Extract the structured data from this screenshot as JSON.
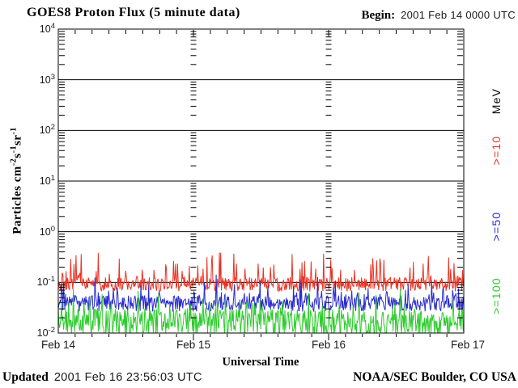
{
  "header": {
    "title": "GOES8 Proton Flux (5 minute data)",
    "begin_label": "Begin:",
    "begin_value": "2001 Feb 14 0000 UTC"
  },
  "footer": {
    "updated_label": "Updated",
    "updated_value": "2001 Feb 16 23:56:03 UTC",
    "credit": "NOAA/SEC Boulder, CO USA"
  },
  "chart_data": {
    "type": "line",
    "title": "GOES8 Proton Flux (5 minute data)",
    "xlabel": "Universal Time",
    "ylabel": "Particles cm-2s-1sr-1",
    "ylabel_parts": [
      {
        "t": "Particles cm"
      },
      {
        "t": "-2",
        "sup": true
      },
      {
        "t": "s"
      },
      {
        "t": "-1",
        "sup": true
      },
      {
        "t": "sr"
      },
      {
        "t": "-1",
        "sup": true
      }
    ],
    "x_ticks": [
      "Feb 14",
      "Feb 15",
      "Feb 16",
      "Feb 17"
    ],
    "x_minor_tick_hours": 3,
    "time_range": {
      "start": "2001 Feb 14 0000 UTC",
      "end": "2001 Feb 17 0000 UTC",
      "cadence_minutes": 5
    },
    "y_axis": {
      "scale": "log",
      "tick_base": "10",
      "tick_exponents": [
        "4",
        "3",
        "2",
        "1",
        "0",
        "-1",
        "-2"
      ],
      "min_exp": -2,
      "max_exp": 4,
      "unit": "Particles cm-2 s-1 sr-1"
    },
    "right_axis_unit": "MeV",
    "grid": {
      "solid_decade_lines_exponents": [
        3,
        2,
        1,
        0,
        -1
      ],
      "day_boundary_log_tick_columns": [
        "Feb 15",
        "Feb 16"
      ]
    },
    "series": [
      {
        "name": ">=10",
        "unit": "MeV",
        "color": "#e93223",
        "description": "noisy quiet-time flux band",
        "typical_flux": 0.1,
        "band_range": [
          0.066,
          0.13
        ],
        "peak_flux": 0.5,
        "min_flux": 0.05,
        "sim": {
          "seed": 101,
          "log_mean": -1.04,
          "band": 0.14,
          "spike_p": 0.22,
          "spike_max": 0.62
        }
      },
      {
        "name": ">=50",
        "unit": "MeV",
        "color": "#2a2ccd",
        "description": "noisy quiet-time flux band",
        "typical_flux": 0.04,
        "band_range": [
          0.026,
          0.056
        ],
        "peak_flux": 0.15,
        "min_flux": 0.015,
        "sim": {
          "seed": 202,
          "log_mean": -1.42,
          "band": 0.16,
          "spike_p": 0.2,
          "spike_max": 0.45
        }
      },
      {
        "name": ">=100",
        "unit": "MeV",
        "color": "#2ecb2e",
        "description": "noisy quiet-time flux band, frequently at 0.01 floor",
        "typical_flux": 0.02,
        "band_range": [
          0.01,
          0.03
        ],
        "peak_flux": 0.1,
        "min_flux": 0.01,
        "sim": {
          "seed": 303,
          "log_mean": -1.8,
          "band": 0.28,
          "spike_p": 0.18,
          "spike_max": 0.5
        }
      }
    ],
    "axis_color": "#000000",
    "background_color": "#ffffff"
  }
}
